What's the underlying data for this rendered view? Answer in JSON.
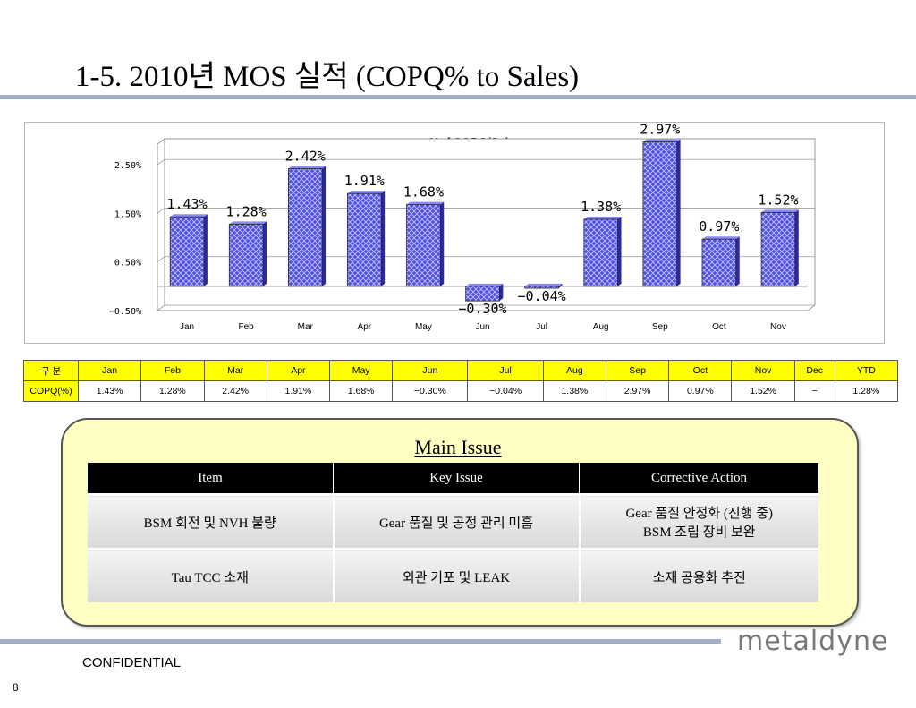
{
  "page": {
    "title": "1-5. 2010년 MOS 실적 (COPQ% to Sales)",
    "confidential": "CONFIDENTIAL",
    "page_number": "8",
    "logo_text": "metaldyne"
  },
  "chart_data": {
    "type": "bar",
    "title": "%of COPQ/Sales",
    "categories": [
      "Jan",
      "Feb",
      "Mar",
      "Apr",
      "May",
      "Jun",
      "Jul",
      "Aug",
      "Sep",
      "Oct",
      "Nov"
    ],
    "values": [
      1.43,
      1.28,
      2.42,
      1.91,
      1.68,
      -0.3,
      -0.04,
      1.38,
      2.97,
      0.97,
      1.52
    ],
    "data_labels": [
      "1.43%",
      "1.28%",
      "2.42%",
      "1.91%",
      "1.68%",
      "−0.30%",
      "−0.04%",
      "1.38%",
      "2.97%",
      "0.97%",
      "1.52%"
    ],
    "yticks": [
      "2.50%",
      "1.50%",
      "0.50%",
      "−0.50%"
    ],
    "ytick_values": [
      2.5,
      1.5,
      0.5,
      -0.5
    ],
    "ylim": [
      -0.5,
      3.0
    ],
    "bar_color": "#5050e6",
    "grid": true,
    "three_d": true
  },
  "kpi_table": {
    "row_header": "구 분",
    "months": [
      "Jan",
      "Feb",
      "Mar",
      "Apr",
      "May",
      "Jun",
      "Jul",
      "Aug",
      "Sep",
      "Oct",
      "Nov",
      "Dec",
      "YTD"
    ],
    "value_label": "COPQ(%)",
    "values": [
      "1.43%",
      "1.28%",
      "2.42%",
      "1.91%",
      "1.68%",
      "−0.30%",
      "−0.04%",
      "1.38%",
      "2.97%",
      "0.97%",
      "1.52%",
      "−",
      "1.28%"
    ]
  },
  "main_issue": {
    "title": "Main Issue",
    "headers": [
      "Item",
      "Key Issue",
      "Corrective Action"
    ],
    "rows": [
      {
        "item": "BSM 회전 및 NVH 불량",
        "key_issue": "Gear 품질  및 공정 관리 미흡",
        "action_line1": "Gear 품질 안정화 (진행 중)",
        "action_line2": "BSM 조립 장비 보완"
      },
      {
        "item": "Tau TCC 소재",
        "key_issue": "외관 기포 및 LEAK",
        "action_line1": "소재 공용화 추진",
        "action_line2": ""
      }
    ]
  }
}
